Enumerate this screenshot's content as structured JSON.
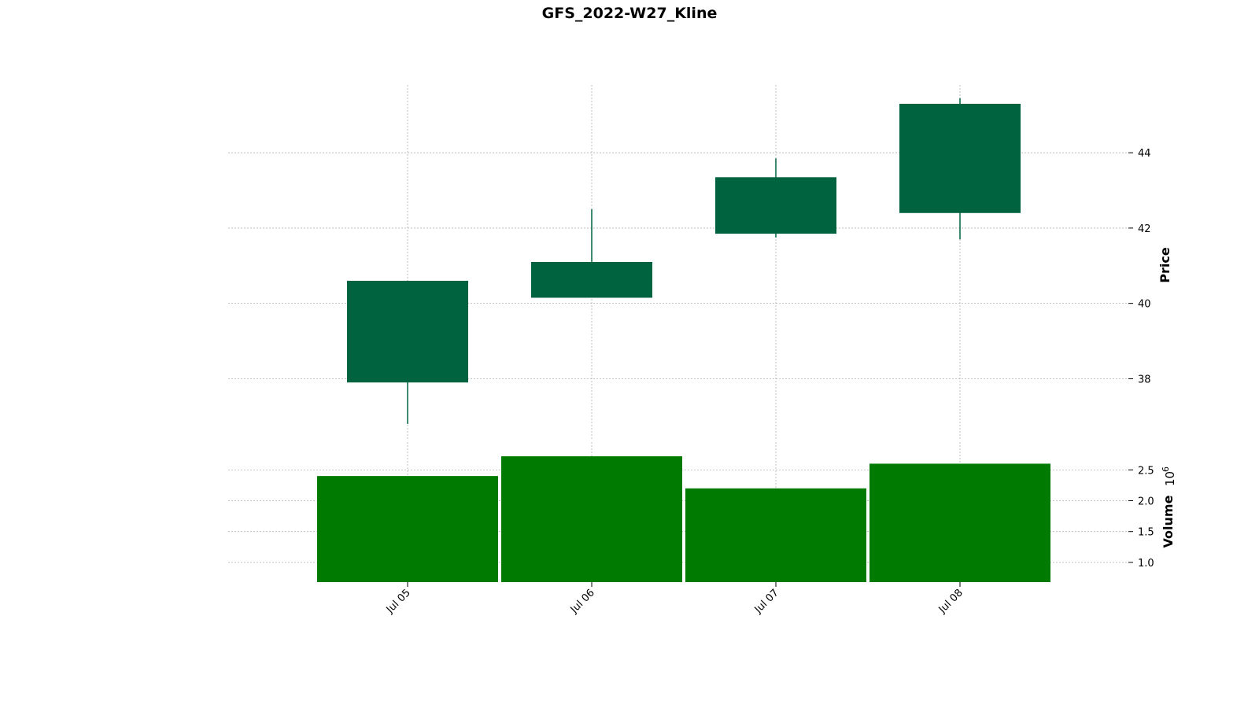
{
  "chart_data": {
    "type": "candlestick",
    "title": "GFS_2022-W27_Kline",
    "categories": [
      "Jul 05",
      "Jul 06",
      "Jul 07",
      "Jul 08"
    ],
    "ohlc": [
      {
        "open": 37.9,
        "high": 40.6,
        "low": 36.8,
        "close": 40.6
      },
      {
        "open": 40.15,
        "high": 42.5,
        "low": 40.15,
        "close": 41.1
      },
      {
        "open": 41.85,
        "high": 43.85,
        "low": 41.75,
        "close": 43.35
      },
      {
        "open": 42.4,
        "high": 45.45,
        "low": 41.7,
        "close": 45.3
      }
    ],
    "volume": [
      2.4,
      2.72,
      2.2,
      2.6
    ],
    "price_axis": {
      "label": "Price",
      "ticks": [
        "38",
        "40",
        "42",
        "44"
      ],
      "ylim": [
        36.4,
        45.8
      ]
    },
    "volume_axis": {
      "label": "Volume",
      "multiplier": "10",
      "exponent": "6",
      "ticks": [
        "1.0",
        "1.5",
        "2.0",
        "2.5"
      ],
      "ylim": [
        0.68,
        2.95
      ]
    },
    "grid": true,
    "colors": {
      "candle": "#006340",
      "volume": "#007a00",
      "grid": "#b0b0b0"
    }
  }
}
